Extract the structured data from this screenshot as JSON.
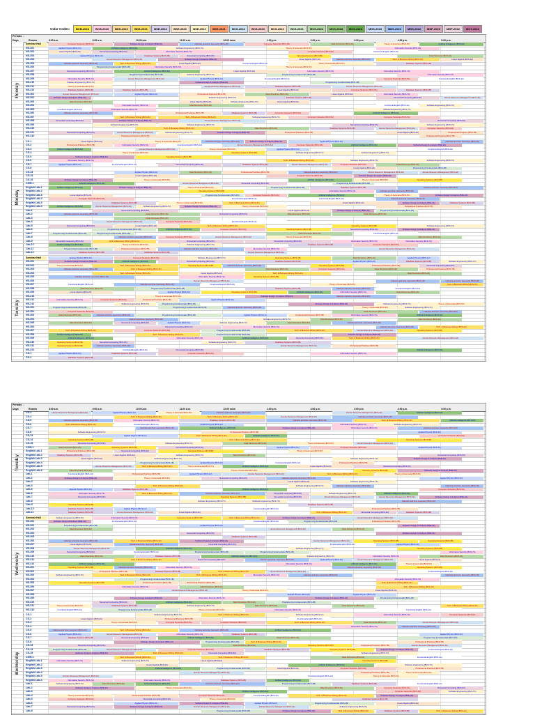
{
  "legend": {
    "caption": "Color Codes",
    "chips": [
      {
        "label": "BCB-2024",
        "color": "#ffe94d"
      },
      {
        "label": "BCB-2023",
        "color": "#ffd0e0"
      },
      {
        "label": "BDS-2022",
        "color": "#ffdd99"
      },
      {
        "label": "BDS-2021",
        "color": "#ffe066"
      },
      {
        "label": "BSE-2024",
        "color": "#d9d2e9"
      },
      {
        "label": "BSE-2023",
        "color": "#fce5cd"
      },
      {
        "label": "BSE-2022",
        "color": "#fff2cc"
      },
      {
        "label": "BSE-2021",
        "color": "#ff9966"
      },
      {
        "label": "BCS-2024",
        "color": "#cfe2f3"
      },
      {
        "label": "BCS-2023",
        "color": "#f4cccc"
      },
      {
        "label": "BCS-2022",
        "color": "#fce5cd"
      },
      {
        "label": "BCS-2021",
        "color": "#d9ead3"
      },
      {
        "label": "MCS-2024",
        "color": "#b6d7a8"
      },
      {
        "label": "MCS-2023",
        "color": "#93c47d"
      },
      {
        "label": "MCS-2022",
        "color": "#6aa84f"
      },
      {
        "label": "MDS-2023",
        "color": "#c9daf8"
      },
      {
        "label": "MDS-2022",
        "color": "#a4c2f4"
      },
      {
        "label": "MDS-2022",
        "color": "#b4a7d6"
      },
      {
        "label": "MSP-2023",
        "color": "#d5a6bd"
      },
      {
        "label": "MSP-2022",
        "color": "#ead1dc"
      },
      {
        "label": "MCY-2024",
        "color": "#c27ba0"
      }
    ]
  },
  "header": {
    "periods_label": "Periods",
    "days_label": "Days",
    "rooms_label": "Rooms",
    "slots": [
      "8:00 a.m.",
      "9:00 a.m.",
      "10:00 a.m.",
      "11:00 a.m.",
      "12:00 noon",
      "1:00 p.m.",
      "2:00 p.m.",
      "3:00 p.m.",
      "4:00 p.m.",
      "5:00 p.m."
    ]
  },
  "pages": [
    {
      "days": [
        {
          "name": "Monday",
          "rows": [
            "Seminar Hall",
            "NS-201",
            "NS-202",
            "NS-203",
            "NS-204",
            "NS-205",
            "NS-206",
            "NS-207",
            "NS-208",
            "NS-209",
            "NS-210",
            "NS-211",
            "NS-212",
            "NS-301",
            "NS-302",
            "NS-303",
            "NS-304",
            "NS-305",
            "NS-306",
            "NS-307",
            "NS-308",
            "NS-309",
            "NS-310",
            "NS-311",
            "NS-312"
          ]
        },
        {
          "name": "Monday",
          "rows": [
            "CS-1",
            "CS-2",
            "CS-3",
            "CS-4",
            "CS-5",
            "CS-6",
            "CS-7",
            "CS-8",
            "CS-13",
            "CS-14",
            "CS-15",
            "CSW-1",
            "English Lab-1",
            "English Lab-2",
            "English Lab-3",
            "English Lab-4",
            "English Lab-5",
            "English Lab-6",
            "Lab-1",
            "Lab-2",
            "Lab-3",
            "Lab-4",
            "Lab-5",
            "Lab-6",
            "Lab-7",
            "Lab-8",
            "Lab-9",
            "Lab-10",
            "Lab-11",
            "Lab-12"
          ]
        },
        {
          "name": "Tuesday",
          "rows": [
            "Seminar Hall",
            "NS-201",
            "NS-202",
            "NS-203",
            "NS-204",
            "NS-205",
            "NS-206",
            "NS-207",
            "NS-208",
            "NS-209",
            "NS-210",
            "NS-211",
            "NS-212",
            "NS-301",
            "NS-302",
            "NS-303",
            "NS-304",
            "NS-305",
            "NS-306",
            "NS-307",
            "NS-308",
            "NS-309",
            "NS-310",
            "NS-311",
            "NS-312",
            "CS-1",
            "CS-2"
          ]
        }
      ]
    },
    {
      "days": [
        {
          "name": "Tuesday",
          "rows": [
            "CS-3",
            "CS-4",
            "CS-5",
            "CS-6",
            "CS-7",
            "CS-8",
            "CS-13",
            "CS-14",
            "CS-15",
            "CSW-1",
            "English Lab-1",
            "English Lab-2",
            "English Lab-3",
            "English Lab-4",
            "English Lab-5",
            "English Lab-6",
            "Lab-1",
            "Lab-2",
            "Lab-3",
            "Lab-4",
            "Lab-5",
            "Lab-6",
            "Lab-7",
            "Lab-8",
            "Lab-9",
            "Lab-10",
            "Lab-11"
          ]
        },
        {
          "name": "Wednesday",
          "rows": [
            "Seminar Hall",
            "NS-201",
            "NS-202",
            "NS-203",
            "NS-204",
            "NS-205",
            "NS-206",
            "NS-207",
            "NS-208",
            "NS-209",
            "NS-210",
            "NS-211",
            "NS-212",
            "NS-301",
            "NS-302",
            "NS-303",
            "NS-304",
            "NS-305",
            "NS-306",
            "NS-307",
            "NS-308",
            "NS-309",
            "NS-310",
            "NS-311",
            "NS-312"
          ]
        },
        {
          "name": "Wednesday",
          "rows": [
            "CS-1",
            "CS-2",
            "CS-3",
            "CS-4",
            "CS-5",
            "CS-6",
            "CS-7",
            "CS-8",
            "CS-13",
            "CS-14",
            "CS-15",
            "CSW-1",
            "English Lab-1",
            "English Lab-2",
            "English Lab-3",
            "English Lab-4",
            "English Lab-5",
            "English Lab-6",
            "Lab-1",
            "Lab-2",
            "Lab-3",
            "Lab-4",
            "Lab-5",
            "Lab-6",
            "Lab-7",
            "Lab-8"
          ]
        }
      ]
    }
  ],
  "courses": [
    {
      "t": "Tech. & Business Writing (BCS-4C)",
      "c": "#ffe066",
      "fg": "#c00000"
    },
    {
      "t": "Linear Algebra (BCS-2A)",
      "c": "#fce5cd",
      "fg": "#0000cc"
    },
    {
      "t": "Human Resource Management (BCS-4A)",
      "c": "#cfe2f3",
      "fg": "#c00000"
    },
    {
      "t": "Programming Fundamentals (BCS-1B)",
      "c": "#d9ead3",
      "fg": "#0000cc"
    },
    {
      "t": "Computer Networks (BCS-5A)",
      "c": "#f4cccc",
      "fg": "#c00000"
    },
    {
      "t": "Software Engineering (BCS-7C)",
      "c": "#fff2cc",
      "fg": "#0000cc"
    },
    {
      "t": "Database Systems (BCS-3B)",
      "c": "#d9d2e9",
      "fg": "#c00000"
    },
    {
      "t": "Information Security (BCS-7A)",
      "c": "#ffd0e0",
      "fg": "#0000cc"
    },
    {
      "t": "Data Structures (BCS-3A)",
      "c": "#b6d7a8",
      "fg": "#c00000"
    },
    {
      "t": "Applied Physics (BCS-1C)",
      "c": "#c9daf8",
      "fg": "#0000cc"
    },
    {
      "t": "Operating Systems (BCS-5B)",
      "c": "#ffe94d",
      "fg": "#c00000"
    },
    {
      "t": "Professional Practices (BCS-7B)",
      "c": "#fce5cd",
      "fg": "#c00000"
    },
    {
      "t": "Numerical Computing (BCS-6C)",
      "c": "#ead1dc",
      "fg": "#0000cc"
    },
    {
      "t": "Functional English (BCS-1A)",
      "c": "#ffffff",
      "fg": "#0000cc"
    },
    {
      "t": "Calculus and Ana. Geometry (BCS-1D)",
      "c": "#a4c2f4",
      "fg": "#c00000"
    },
    {
      "t": "Software Design & Analysis (BSE-3A)",
      "c": "#d5a6bd",
      "fg": "#0000cc"
    },
    {
      "t": "Theory of Automata (BCS-5C)",
      "c": "#fff2cc",
      "fg": "#c00000"
    },
    {
      "t": "Artificial Intelligence (BCS-6A)",
      "c": "#93c47d",
      "fg": "#0000cc"
    }
  ]
}
